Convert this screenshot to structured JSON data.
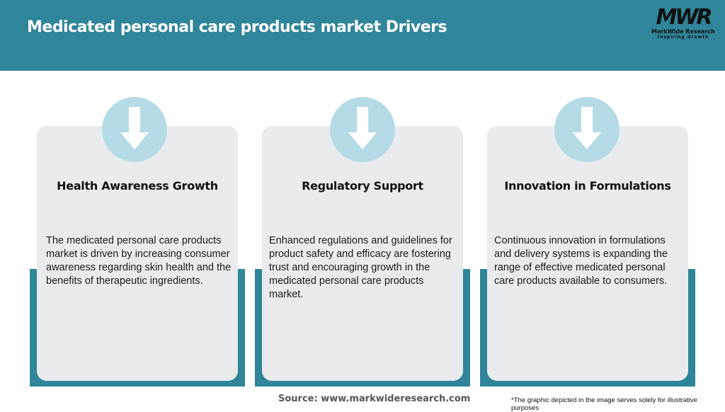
{
  "header": {
    "title": "Medicated personal care products market Drivers"
  },
  "logo": {
    "mark": "MWR",
    "name": "MarkWide Research",
    "tagline": "Inspiring Growth"
  },
  "colors": {
    "header": "#2f8599",
    "card": "#e9ebec",
    "circle": "#b5dce6"
  },
  "cards": [
    {
      "icon": "arrow-down-icon",
      "title": "Health Awareness Growth",
      "text": "The medicated personal care products market is driven by increasing consumer awareness regarding skin health and the benefits of therapeutic ingredients."
    },
    {
      "icon": "arrow-down-icon",
      "title": "Regulatory Support",
      "text": "Enhanced regulations and guidelines for product safety and efficacy are fostering trust and encouraging growth in the medicated personal care products market."
    },
    {
      "icon": "arrow-down-icon",
      "title": "Innovation in Formulations",
      "text": "Continuous innovation in formulations and delivery systems is expanding the range of effective medicated personal care products available to consumers."
    }
  ],
  "footer": {
    "source": "Source: www.markwideresearch.com",
    "note": "*The graphic depicted in the image serves solely for illustrative purposes"
  }
}
